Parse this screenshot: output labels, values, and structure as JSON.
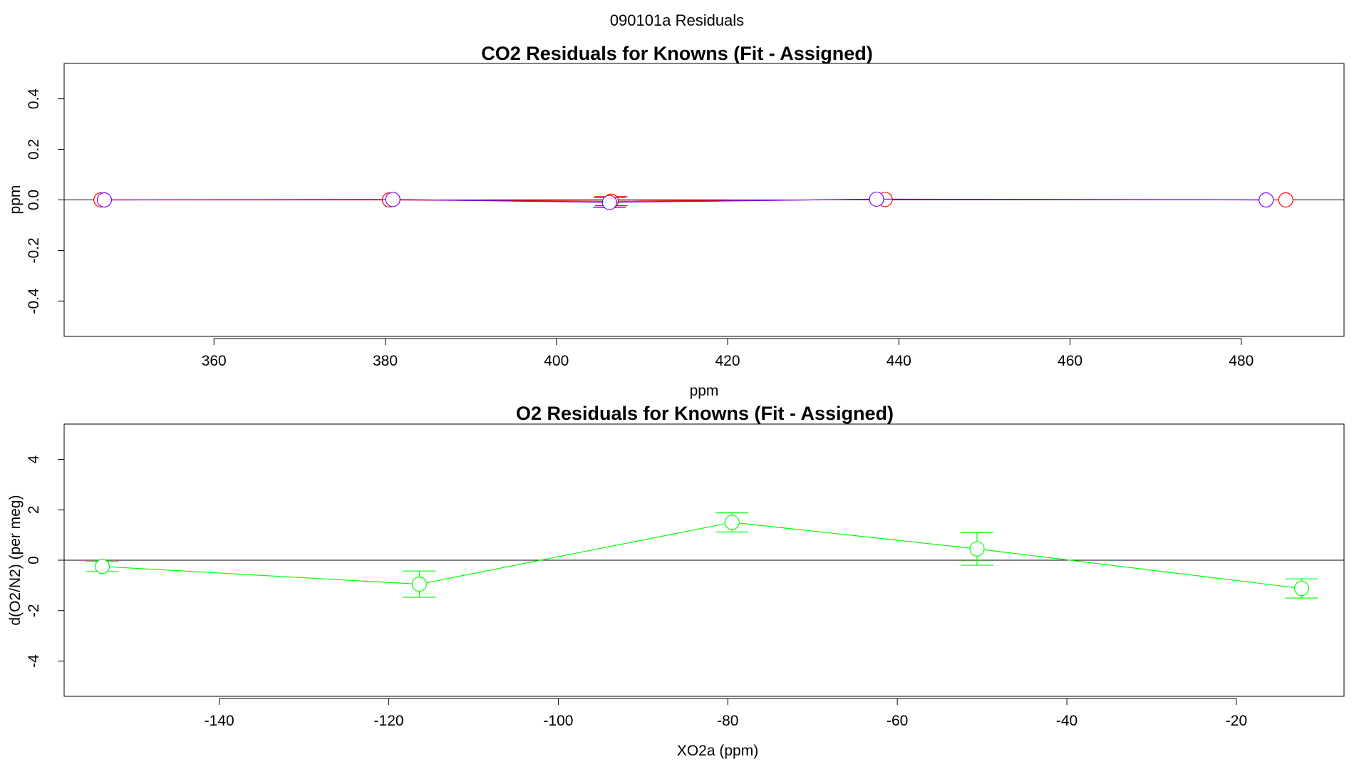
{
  "figure_title": "090101a  Residuals",
  "chart_data": [
    {
      "type": "line",
      "title": "CO2 Residuals for Knowns (Fit - Assigned)",
      "xlabel": "ppm",
      "ylabel": "ppm",
      "xlim": [
        342.5,
        492
      ],
      "ylim": [
        -0.54,
        0.54
      ],
      "xticks": [
        360,
        380,
        400,
        420,
        440,
        460,
        480
      ],
      "yticks": [
        -0.4,
        -0.2,
        0.0,
        0.2,
        0.4
      ],
      "xtick_labels": [
        "360",
        "380",
        "400",
        "420",
        "440",
        "460",
        "480"
      ],
      "ytick_labels": [
        "-0.4",
        "-0.2",
        "0.0",
        "0.2",
        "0.4"
      ],
      "zero_line": true,
      "grid": false,
      "series": [
        {
          "color": "#ff0000",
          "x": [
            346.8,
            380.5,
            406.4,
            438.4,
            485.2
          ],
          "y": [
            0.0,
            0.0,
            -0.005,
            0.002,
            0.0
          ],
          "err": [
            0.0,
            0.0,
            0.018,
            0.0,
            0.0
          ]
        },
        {
          "color": "#8000ff",
          "x": [
            347.2,
            380.9,
            406.2,
            437.4,
            482.9
          ],
          "y": [
            0.0,
            0.002,
            -0.01,
            0.003,
            0.0
          ],
          "err": [
            0.0,
            0.0,
            0.02,
            0.0,
            0.0
          ]
        }
      ]
    },
    {
      "type": "line",
      "title": "O2 Residuals for Knowns (Fit - Assigned)",
      "xlabel": "XO2a (ppm)",
      "ylabel": "d(O2/N2) (per meg)",
      "xlim": [
        -158.3,
        -7.3
      ],
      "ylim": [
        -5.4,
        5.4
      ],
      "xticks": [
        -140,
        -120,
        -100,
        -80,
        -60,
        -40,
        -20
      ],
      "yticks": [
        -4,
        -2,
        0,
        2,
        4
      ],
      "xtick_labels": [
        "-140",
        "-120",
        "-100",
        "-80",
        "-60",
        "-40",
        "-20"
      ],
      "ytick_labels": [
        "-4",
        "-2",
        "0",
        "2",
        "4"
      ],
      "zero_line": true,
      "grid": false,
      "series": [
        {
          "color": "#00ff00",
          "x": [
            -153.8,
            -116.4,
            -79.5,
            -50.6,
            -12.3
          ],
          "y": [
            -0.25,
            -0.95,
            1.5,
            0.45,
            -1.12
          ],
          "err": [
            0.2,
            0.52,
            0.38,
            0.65,
            0.38
          ]
        }
      ]
    }
  ]
}
